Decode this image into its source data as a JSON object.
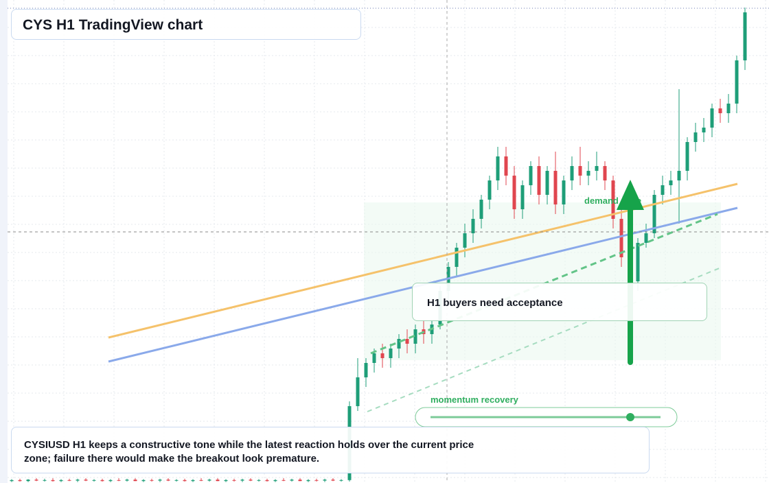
{
  "chart_data": {
    "type": "candlestick",
    "title": "CYS H1 TradingView chart",
    "zone_label": "demand zone",
    "callout": "H1 buyers need acceptance",
    "slider_label": "momentum recovery",
    "caption": "CYSIUSD H1 keeps a constructive tone while the latest reaction holds over the current price zone; failure there would make the breakout look premature.",
    "up_color": "#1e9e78",
    "down_color": "#e0464f",
    "ylim": [
      0,
      100
    ],
    "ohlc": [
      [
        0.4,
        0.8,
        0.2,
        0.6
      ],
      [
        0.6,
        0.9,
        0.3,
        0.4
      ],
      [
        0.4,
        0.8,
        0.2,
        0.7
      ],
      [
        0.7,
        1.0,
        0.4,
        0.5
      ],
      [
        0.5,
        0.9,
        0.3,
        0.6
      ],
      [
        0.6,
        1.0,
        0.3,
        0.4
      ],
      [
        0.4,
        0.8,
        0.2,
        0.6
      ],
      [
        0.6,
        0.9,
        0.4,
        0.5
      ],
      [
        0.5,
        0.9,
        0.2,
        0.7
      ],
      [
        0.7,
        1.0,
        0.4,
        0.5
      ],
      [
        0.5,
        0.8,
        0.3,
        0.6
      ],
      [
        0.6,
        0.9,
        0.3,
        0.4
      ],
      [
        0.4,
        0.8,
        0.2,
        0.6
      ],
      [
        0.6,
        1.0,
        0.4,
        0.5
      ],
      [
        0.5,
        0.9,
        0.3,
        0.7
      ],
      [
        0.7,
        1.0,
        0.4,
        0.4
      ],
      [
        0.4,
        0.8,
        0.2,
        0.6
      ],
      [
        0.6,
        0.9,
        0.3,
        0.5
      ],
      [
        0.5,
        0.9,
        0.2,
        0.7
      ],
      [
        0.7,
        1.0,
        0.4,
        0.5
      ],
      [
        0.5,
        0.8,
        0.3,
        0.6
      ],
      [
        0.6,
        0.9,
        0.3,
        0.4
      ],
      [
        0.4,
        0.8,
        0.2,
        0.6
      ],
      [
        0.6,
        1.0,
        0.4,
        0.5
      ],
      [
        0.5,
        0.9,
        0.3,
        0.7
      ],
      [
        0.7,
        1.0,
        0.4,
        0.4
      ],
      [
        0.4,
        0.8,
        0.2,
        0.6
      ],
      [
        0.6,
        0.9,
        0.3,
        0.5
      ],
      [
        0.5,
        0.9,
        0.2,
        0.7
      ],
      [
        0.7,
        1.0,
        0.4,
        0.5
      ],
      [
        0.5,
        0.8,
        0.3,
        0.6
      ],
      [
        0.6,
        0.9,
        0.3,
        0.4
      ],
      [
        0.4,
        0.8,
        0.2,
        0.6
      ],
      [
        0.6,
        1.0,
        0.4,
        0.5
      ],
      [
        0.5,
        0.9,
        0.3,
        0.7
      ],
      [
        0.7,
        1.0,
        0.4,
        0.4
      ],
      [
        0.4,
        0.8,
        0.2,
        0.6
      ],
      [
        0.6,
        0.9,
        0.3,
        0.5
      ],
      [
        0.5,
        0.9,
        0.2,
        0.7
      ],
      [
        0.7,
        1.0,
        0.4,
        0.5
      ],
      [
        0.5,
        0.8,
        0.3,
        0.6
      ],
      [
        0.6,
        17,
        0.3,
        16
      ],
      [
        16,
        26,
        15,
        22
      ],
      [
        22,
        26,
        20,
        25
      ],
      [
        25,
        28,
        23,
        27
      ],
      [
        27,
        29,
        24,
        26
      ],
      [
        26,
        29,
        24,
        28
      ],
      [
        28,
        31,
        26,
        30
      ],
      [
        30,
        32,
        27,
        29
      ],
      [
        29,
        33,
        27,
        32
      ],
      [
        32,
        34,
        29,
        31
      ],
      [
        31,
        34,
        29,
        33
      ],
      [
        33,
        41,
        32,
        40
      ],
      [
        40,
        46,
        38,
        45
      ],
      [
        45,
        50,
        43,
        49
      ],
      [
        49,
        54,
        47,
        52
      ],
      [
        52,
        57,
        50,
        55
      ],
      [
        55,
        60,
        53,
        59
      ],
      [
        59,
        64,
        57,
        63
      ],
      [
        63,
        70,
        61,
        68
      ],
      [
        68,
        70,
        62,
        64
      ],
      [
        64,
        66,
        55,
        57
      ],
      [
        57,
        63,
        55,
        62
      ],
      [
        62,
        67,
        60,
        66
      ],
      [
        66,
        68,
        58,
        60
      ],
      [
        60,
        66,
        58,
        65
      ],
      [
        65,
        69,
        56,
        58
      ],
      [
        58,
        64,
        56,
        63
      ],
      [
        63,
        68,
        61,
        66
      ],
      [
        66,
        70,
        62,
        64
      ],
      [
        64,
        67,
        62,
        65
      ],
      [
        65,
        69,
        63,
        66
      ],
      [
        66,
        67,
        61,
        63
      ],
      [
        63,
        64,
        53,
        55
      ],
      [
        55,
        57,
        45,
        47
      ],
      [
        47,
        49,
        38,
        42
      ],
      [
        42,
        51,
        40,
        50
      ],
      [
        50,
        54,
        49,
        52
      ],
      [
        52,
        61,
        51,
        60
      ],
      [
        60,
        64,
        58,
        62
      ],
      [
        62,
        65,
        60,
        63
      ],
      [
        63,
        82,
        54,
        65
      ],
      [
        65,
        72,
        63,
        71
      ],
      [
        71,
        75,
        69,
        73
      ],
      [
        73,
        76,
        71,
        74
      ],
      [
        74,
        79,
        72,
        78
      ],
      [
        78,
        80,
        75,
        77
      ],
      [
        77,
        81,
        75,
        79
      ],
      [
        79,
        89,
        77,
        88
      ],
      [
        88,
        99,
        86,
        98
      ]
    ]
  }
}
